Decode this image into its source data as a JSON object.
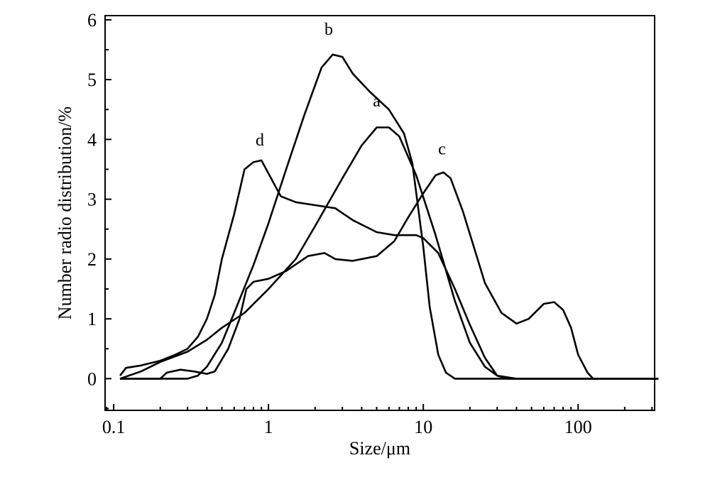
{
  "chart_data": {
    "type": "line",
    "title": "",
    "xlabel": "Size/μm",
    "ylabel": "Number radio distribution/%",
    "xscale": "log",
    "xlim": [
      0.088,
      312
    ],
    "ylim": [
      -0.53,
      6.07
    ],
    "x_ticks": [
      0.1,
      1,
      10,
      100
    ],
    "x_tick_labels": [
      "0.1",
      "1",
      "10",
      "100"
    ],
    "y_ticks": [
      0,
      1,
      2,
      3,
      4,
      5,
      6
    ],
    "y_tick_labels": [
      "0",
      "1",
      "2",
      "3",
      "4",
      "5",
      "6"
    ],
    "grid": false,
    "legend": "none",
    "line_color": "#000000",
    "series": [
      {
        "name": "a",
        "label_at": [
          5.0,
          4.55
        ],
        "points": [
          [
            0.11,
            0
          ],
          [
            0.15,
            0.12
          ],
          [
            0.2,
            0.28
          ],
          [
            0.3,
            0.45
          ],
          [
            0.4,
            0.65
          ],
          [
            0.5,
            0.85
          ],
          [
            0.7,
            1.1
          ],
          [
            1,
            1.5
          ],
          [
            1.5,
            2.0
          ],
          [
            2,
            2.55
          ],
          [
            3,
            3.35
          ],
          [
            4,
            3.9
          ],
          [
            5,
            4.2
          ],
          [
            6,
            4.2
          ],
          [
            7,
            4.05
          ],
          [
            9,
            3.4
          ],
          [
            12,
            2.4
          ],
          [
            16,
            1.3
          ],
          [
            20,
            0.6
          ],
          [
            25,
            0.2
          ],
          [
            30,
            0.05
          ],
          [
            40,
            0
          ],
          [
            330,
            0
          ]
        ]
      },
      {
        "name": "b",
        "label_at": [
          2.45,
          5.75
        ],
        "points": [
          [
            0.11,
            0
          ],
          [
            0.3,
            0
          ],
          [
            0.35,
            0.05
          ],
          [
            0.4,
            0.2
          ],
          [
            0.5,
            0.6
          ],
          [
            0.6,
            1.1
          ],
          [
            0.8,
            1.9
          ],
          [
            1,
            2.6
          ],
          [
            1.3,
            3.5
          ],
          [
            1.7,
            4.4
          ],
          [
            2.2,
            5.2
          ],
          [
            2.6,
            5.42
          ],
          [
            3,
            5.38
          ],
          [
            3.5,
            5.1
          ],
          [
            4.5,
            4.8
          ],
          [
            6,
            4.5
          ],
          [
            7.5,
            4.1
          ],
          [
            8.5,
            3.6
          ],
          [
            10,
            2.2
          ],
          [
            11,
            1.2
          ],
          [
            12.5,
            0.4
          ],
          [
            14,
            0.1
          ],
          [
            16,
            0
          ],
          [
            330,
            0
          ]
        ]
      },
      {
        "name": "c",
        "label_at": [
          13.2,
          3.75
        ],
        "points": [
          [
            0.11,
            0
          ],
          [
            0.2,
            0
          ],
          [
            0.22,
            0.1
          ],
          [
            0.27,
            0.15
          ],
          [
            0.33,
            0.12
          ],
          [
            0.4,
            0.08
          ],
          [
            0.45,
            0.12
          ],
          [
            0.55,
            0.5
          ],
          [
            0.65,
            1.0
          ],
          [
            0.72,
            1.5
          ],
          [
            0.8,
            1.62
          ],
          [
            1,
            1.67
          ],
          [
            1.3,
            1.8
          ],
          [
            1.8,
            2.05
          ],
          [
            2.3,
            2.1
          ],
          [
            2.7,
            2.0
          ],
          [
            3.5,
            1.97
          ],
          [
            5,
            2.05
          ],
          [
            6.5,
            2.3
          ],
          [
            8,
            2.7
          ],
          [
            10,
            3.1
          ],
          [
            12,
            3.4
          ],
          [
            13.5,
            3.45
          ],
          [
            15,
            3.35
          ],
          [
            18,
            2.8
          ],
          [
            25,
            1.6
          ],
          [
            32,
            1.1
          ],
          [
            40,
            0.92
          ],
          [
            48,
            1.0
          ],
          [
            60,
            1.25
          ],
          [
            70,
            1.28
          ],
          [
            80,
            1.15
          ],
          [
            90,
            0.85
          ],
          [
            100,
            0.4
          ],
          [
            115,
            0.1
          ],
          [
            125,
            0
          ],
          [
            330,
            0
          ]
        ]
      },
      {
        "name": "d",
        "label_at": [
          0.88,
          3.9
        ],
        "points": [
          [
            0.11,
            0.05
          ],
          [
            0.12,
            0.18
          ],
          [
            0.15,
            0.22
          ],
          [
            0.2,
            0.3
          ],
          [
            0.25,
            0.4
          ],
          [
            0.3,
            0.5
          ],
          [
            0.35,
            0.7
          ],
          [
            0.4,
            1.0
          ],
          [
            0.45,
            1.4
          ],
          [
            0.5,
            2.0
          ],
          [
            0.6,
            2.75
          ],
          [
            0.7,
            3.5
          ],
          [
            0.8,
            3.62
          ],
          [
            0.9,
            3.65
          ],
          [
            1.2,
            3.05
          ],
          [
            1.5,
            2.95
          ],
          [
            2,
            2.9
          ],
          [
            2.7,
            2.85
          ],
          [
            3.5,
            2.65
          ],
          [
            5,
            2.45
          ],
          [
            6.5,
            2.4
          ],
          [
            9,
            2.4
          ],
          [
            10,
            2.35
          ],
          [
            12.5,
            2.1
          ],
          [
            16,
            1.5
          ],
          [
            20,
            0.9
          ],
          [
            25,
            0.35
          ],
          [
            30,
            0.05
          ],
          [
            35,
            0
          ],
          [
            330,
            0
          ]
        ]
      }
    ]
  }
}
